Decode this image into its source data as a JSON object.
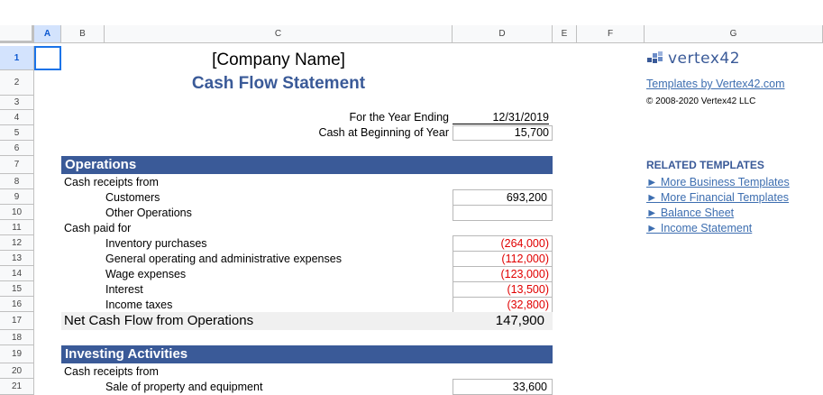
{
  "columns": [
    "A",
    "B",
    "C",
    "D",
    "E",
    "F",
    "G"
  ],
  "rows": [
    "1",
    "2",
    "3",
    "4",
    "5",
    "6",
    "7",
    "8",
    "9",
    "10",
    "11",
    "12",
    "13",
    "14",
    "15",
    "16",
    "17",
    "18",
    "19",
    "20",
    "21"
  ],
  "selected_cell": "A1",
  "header": {
    "company": "[Company Name]",
    "title": "Cash Flow Statement",
    "year_ending_label": "For the Year Ending",
    "year_ending_value": "12/31/2019",
    "cash_begin_label": "Cash at Beginning of Year",
    "cash_begin_value": "15,700"
  },
  "operations": {
    "section_title": "Operations",
    "receipts_label": "Cash receipts from",
    "customers_label": "Customers",
    "customers_value": "693,200",
    "other_label": "Other Operations",
    "other_value": "",
    "paid_label": "Cash paid for",
    "inventory_label": "Inventory purchases",
    "inventory_value": "(264,000)",
    "general_label": "General operating and administrative expenses",
    "general_value": "(112,000)",
    "wage_label": "Wage expenses",
    "wage_value": "(123,000)",
    "interest_label": "Interest",
    "interest_value": "(13,500)",
    "tax_label": "Income taxes",
    "tax_value": "(32,800)",
    "net_label": "Net Cash Flow from Operations",
    "net_value": "147,900"
  },
  "investing": {
    "section_title": "Investing Activities",
    "receipts_label": "Cash receipts from",
    "sale_label": "Sale of property and equipment",
    "sale_value": "33,600"
  },
  "branding": {
    "logo_text": "vertex42",
    "templates_link": "Templates by Vertex42.com",
    "copyright": "© 2008-2020 Vertex42 LLC"
  },
  "related": {
    "heading": "RELATED TEMPLATES",
    "links": [
      "► More Business Templates",
      "► More Financial Templates",
      "► Balance Sheet",
      "► Income Statement"
    ]
  },
  "colors": {
    "band": "#3a5a98",
    "title": "#3a5a98",
    "negative": "#e00000",
    "link": "#3d6eb0"
  }
}
